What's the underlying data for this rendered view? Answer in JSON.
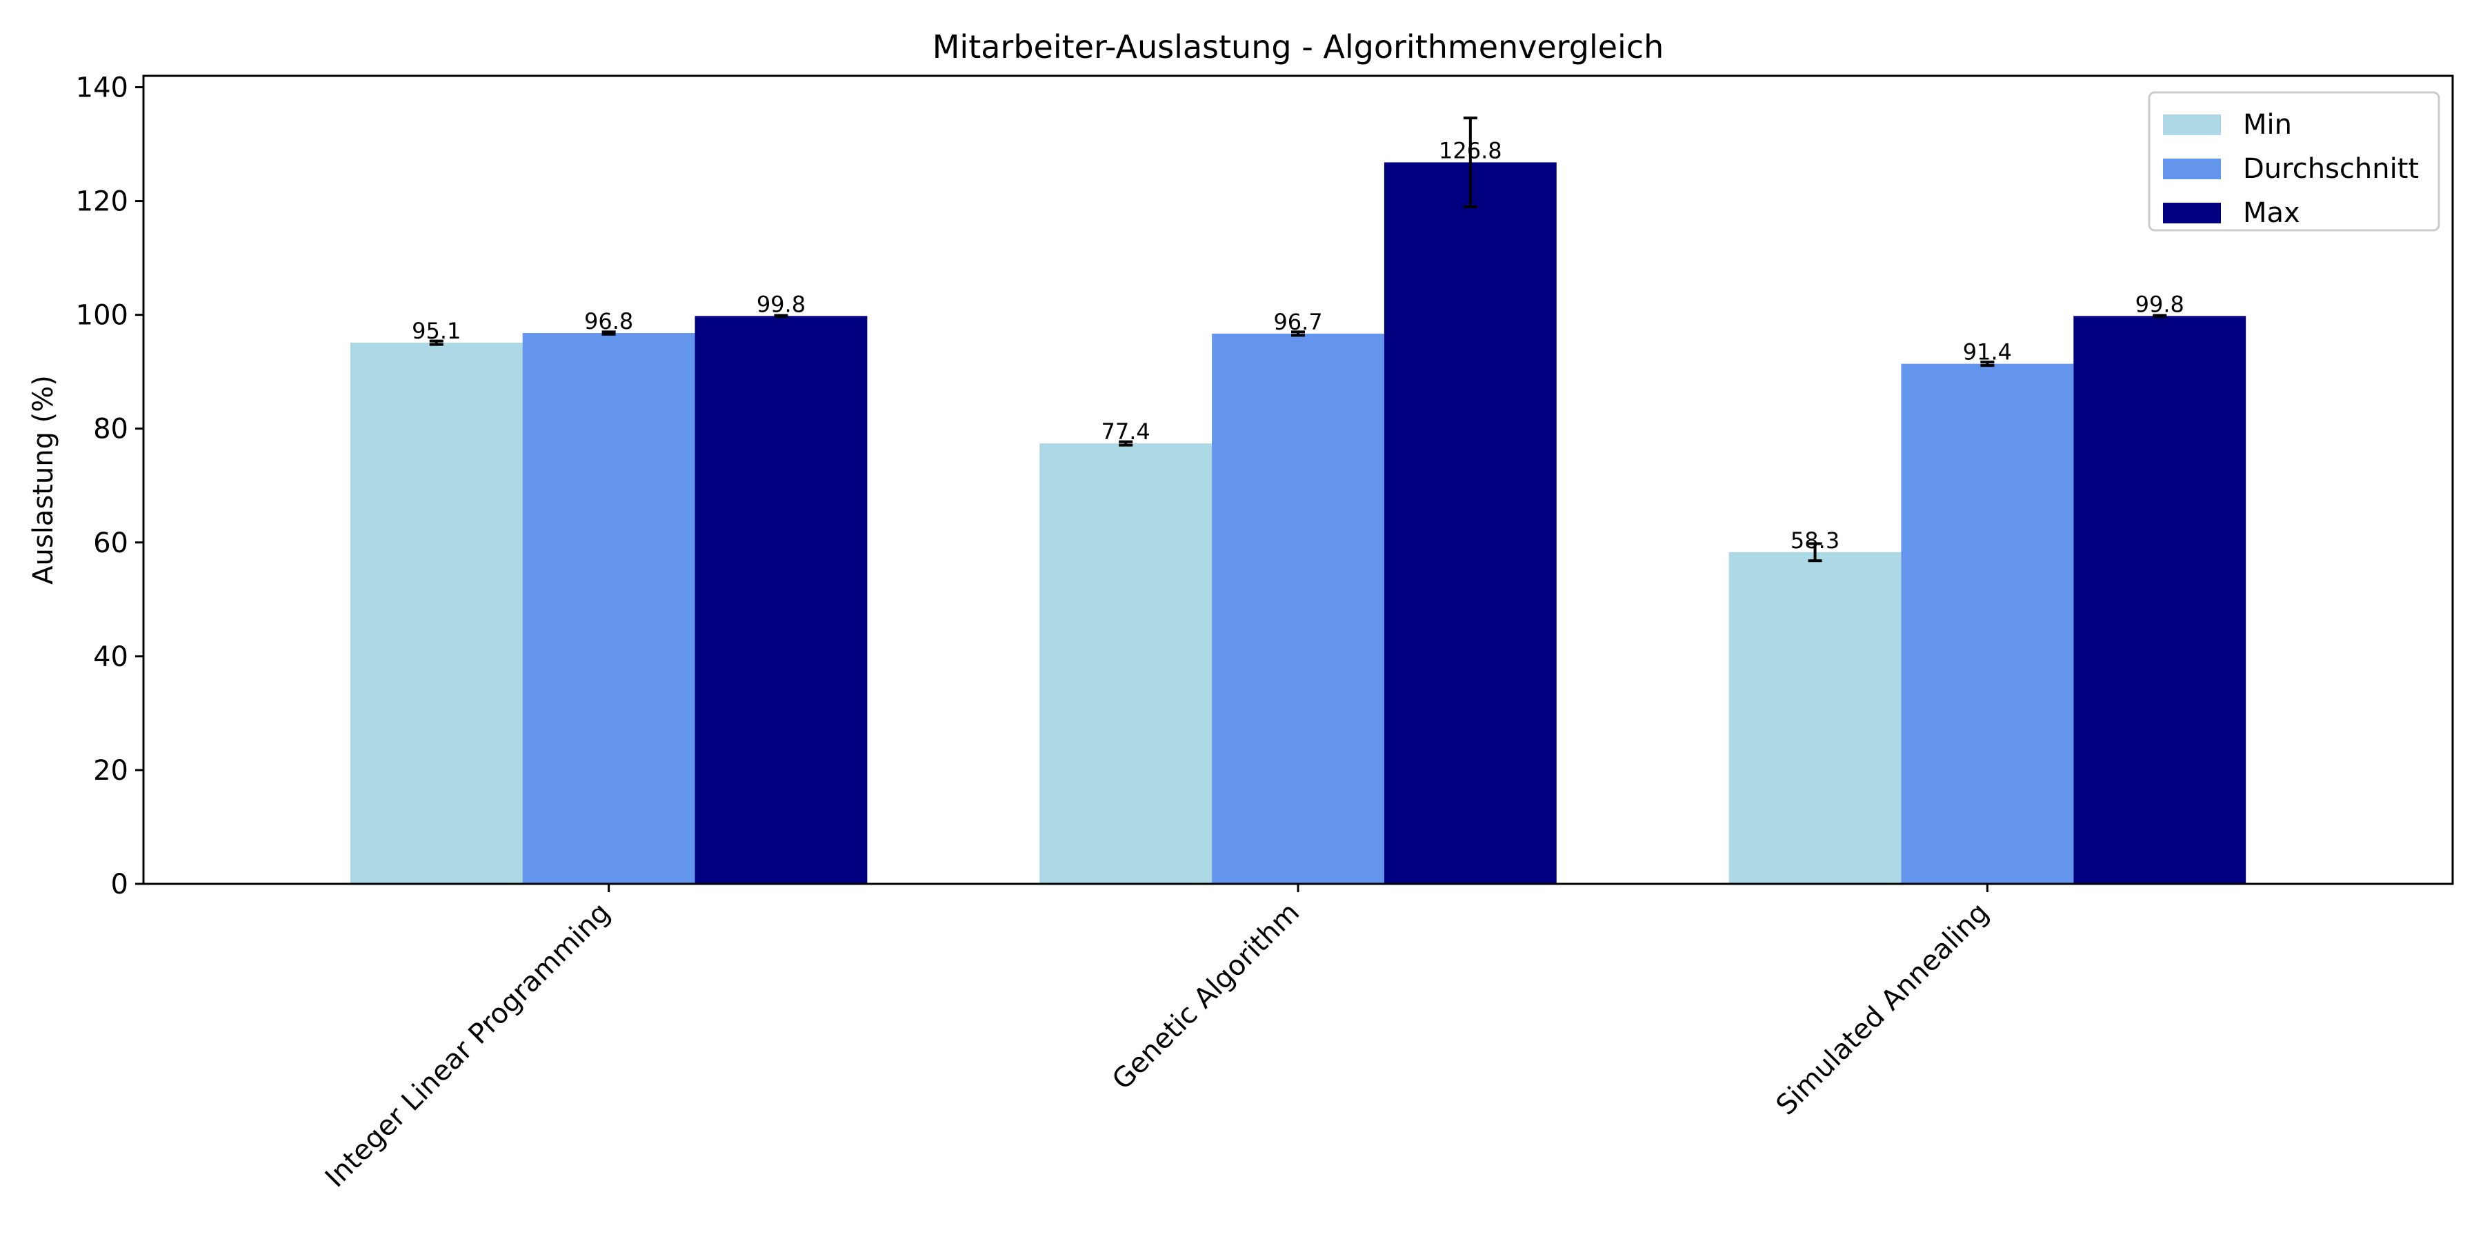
{
  "chart_data": {
    "type": "bar",
    "title": "Mitarbeiter-Auslastung - Algorithmenvergleich",
    "xlabel": "",
    "ylabel": "Auslastung (%)",
    "ylim": [
      0,
      142
    ],
    "yticks": [
      0,
      20,
      40,
      60,
      80,
      100,
      120,
      140
    ],
    "categories": [
      "Integer Linear Programming",
      "Genetic Algorithm",
      "Simulated Annealing"
    ],
    "series": [
      {
        "name": "Min",
        "color": "#add8e6",
        "values": [
          95.1,
          77.4,
          58.3
        ],
        "errors": [
          0.3,
          0.3,
          1.5
        ]
      },
      {
        "name": "Durchschnitt",
        "color": "#6495ed",
        "values": [
          96.8,
          96.7,
          91.4
        ],
        "errors": [
          0.2,
          0.3,
          0.3
        ]
      },
      {
        "name": "Max",
        "color": "#000080",
        "values": [
          99.8,
          126.8,
          99.8
        ],
        "errors": [
          0.1,
          7.8,
          0.1
        ]
      }
    ],
    "value_labels": [
      [
        "95.1",
        "77.4",
        "58.3"
      ],
      [
        "96.8",
        "96.7",
        "91.4"
      ],
      [
        "99.8",
        "126.8",
        "99.8"
      ]
    ],
    "legend": {
      "position": "top-right",
      "entries": [
        "Min",
        "Durchschnitt",
        "Max"
      ]
    },
    "grid": false
  }
}
